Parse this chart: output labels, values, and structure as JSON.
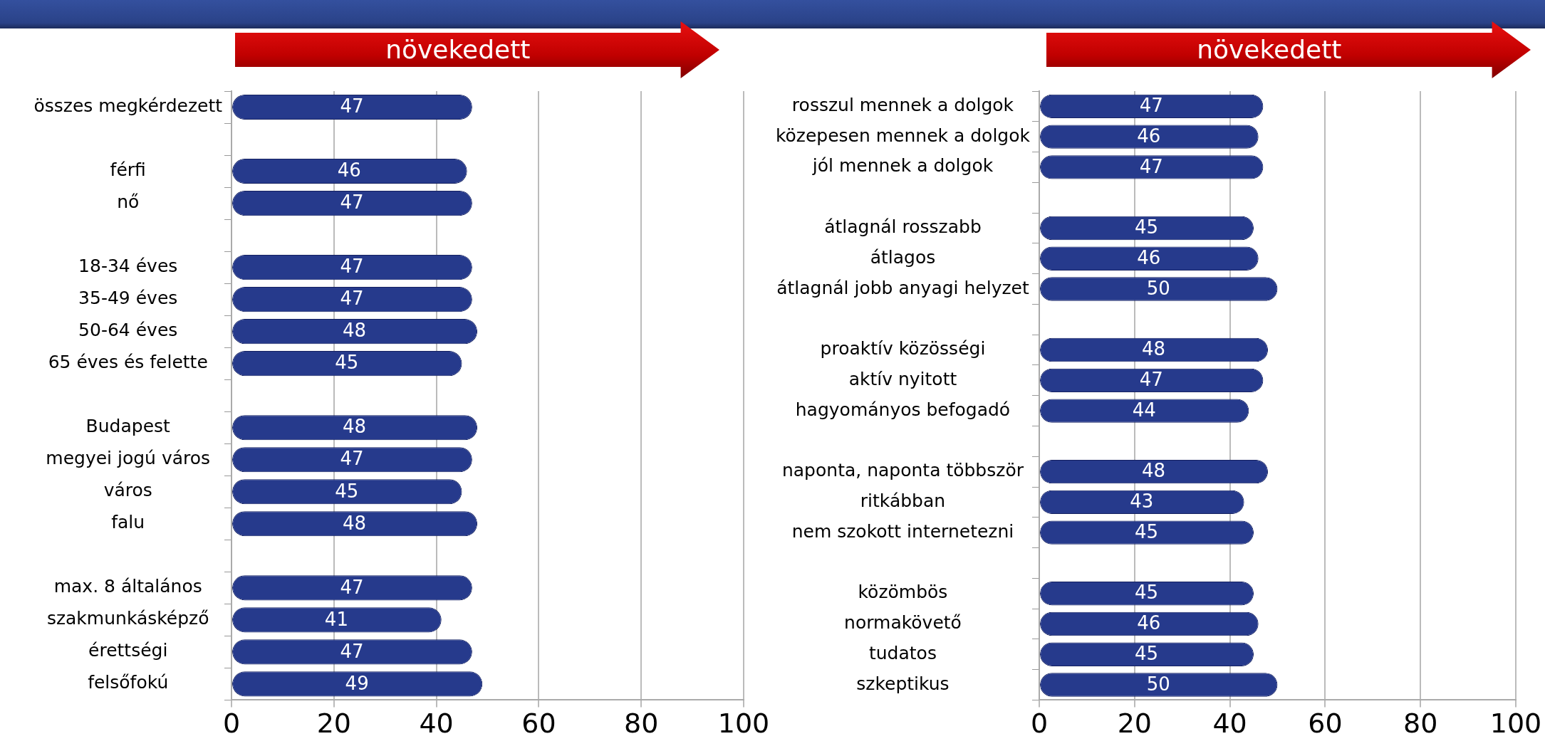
{
  "chart_data": [
    {
      "type": "bar",
      "orientation": "horizontal",
      "title": "növekedett",
      "categories": [
        "összes megkérdezett",
        null,
        "férfi",
        "nő",
        null,
        "18-34 éves",
        "35-49 éves",
        "50-64 éves",
        "65 éves és felette",
        null,
        "Budapest",
        "megyei jogú város",
        "város",
        "falu",
        null,
        "max. 8 általános",
        "szakmunkásképző",
        "érettségi",
        "felsőfokú"
      ],
      "values": [
        47,
        null,
        46,
        47,
        null,
        47,
        47,
        48,
        45,
        null,
        48,
        47,
        45,
        48,
        null,
        47,
        41,
        47,
        49
      ],
      "color": "#263a8c",
      "xlim": [
        0,
        100
      ],
      "xticks": [
        0,
        20,
        40,
        60,
        80,
        100
      ],
      "grid": "x",
      "legend": false,
      "data_labels": true
    },
    {
      "type": "bar",
      "orientation": "horizontal",
      "title": "növekedett",
      "categories": [
        "rosszul mennek a dolgok",
        "közepesen mennek a dolgok",
        "jól mennek a dolgok",
        null,
        "átlagnál rosszabb",
        "átlagos",
        "átlagnál jobb anyagi helyzet",
        null,
        "proaktív közösségi",
        "aktív nyitott",
        "hagyományos befogadó",
        null,
        "naponta, naponta többször",
        "ritkábban",
        "nem szokott internetezni",
        null,
        "közömbös",
        "normakövető",
        "tudatos",
        "szkeptikus"
      ],
      "values": [
        47,
        46,
        47,
        null,
        45,
        46,
        50,
        null,
        48,
        47,
        44,
        null,
        48,
        43,
        45,
        null,
        45,
        46,
        45,
        50
      ],
      "color": "#263a8c",
      "xlim": [
        0,
        100
      ],
      "xticks": [
        0,
        20,
        40,
        60,
        80,
        100
      ],
      "grid": "x",
      "legend": false,
      "data_labels": true
    }
  ]
}
